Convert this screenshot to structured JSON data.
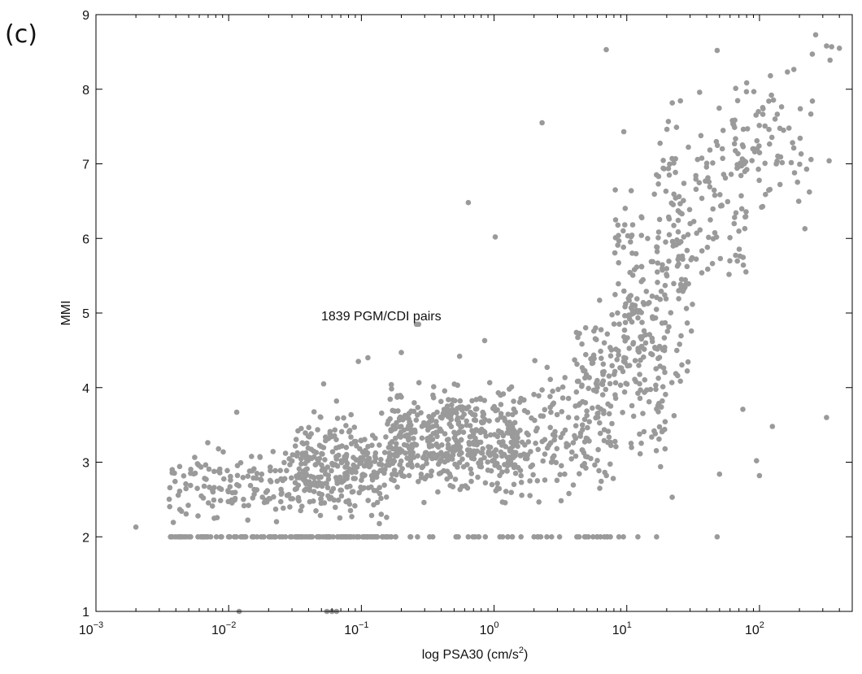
{
  "panel_label": "(c)",
  "chart_data": {
    "type": "scatter",
    "xlabel": "log PSA30 (cm/s",
    "xlabel_sup": "2",
    "xlabel_end": ")",
    "ylabel": "MMI",
    "x_scale": "log",
    "xlim": [
      0.001,
      500
    ],
    "ylim": [
      1,
      9
    ],
    "y_ticks": [
      1,
      2,
      3,
      4,
      5,
      6,
      7,
      8,
      9
    ],
    "x_ticks": [
      {
        "base": "10",
        "exp": "−3",
        "value": 0.001
      },
      {
        "base": "10",
        "exp": "−2",
        "value": 0.01
      },
      {
        "base": "10",
        "exp": "−1",
        "value": 0.1
      },
      {
        "base": "10",
        "exp": "0",
        "value": 1
      },
      {
        "base": "10",
        "exp": "1",
        "value": 10
      },
      {
        "base": "10",
        "exp": "2",
        "value": 100
      }
    ],
    "annotation": {
      "text": "1839 PGM/CDI pairs",
      "x": 0.055,
      "y": 4.95
    },
    "grid": false,
    "marker_color": "#9a9a9a",
    "point_count": 1839,
    "outlier_points": [
      {
        "x": 0.002,
        "y": 2.13
      },
      {
        "x": 0.0115,
        "y": 3.67
      },
      {
        "x": 0.052,
        "y": 4.05
      },
      {
        "x": 0.065,
        "y": 3.82
      },
      {
        "x": 0.095,
        "y": 4.35
      },
      {
        "x": 0.112,
        "y": 4.4
      },
      {
        "x": 0.2,
        "y": 4.47
      },
      {
        "x": 0.26,
        "y": 4.85
      },
      {
        "x": 0.27,
        "y": 4.85
      },
      {
        "x": 0.55,
        "y": 4.42
      },
      {
        "x": 0.64,
        "y": 6.48
      },
      {
        "x": 0.85,
        "y": 4.63
      },
      {
        "x": 1.02,
        "y": 6.02
      },
      {
        "x": 2.3,
        "y": 7.55
      },
      {
        "x": 7.0,
        "y": 8.53
      },
      {
        "x": 9.5,
        "y": 7.43
      },
      {
        "x": 48,
        "y": 8.52
      },
      {
        "x": 95,
        "y": 3.02
      },
      {
        "x": 100,
        "y": 2.82
      },
      {
        "x": 125,
        "y": 3.48
      },
      {
        "x": 48,
        "y": 2.0
      },
      {
        "x": 50,
        "y": 2.84
      },
      {
        "x": 320,
        "y": 3.6
      },
      {
        "x": 335,
        "y": 7.04
      },
      {
        "x": 265,
        "y": 8.73
      },
      {
        "x": 320,
        "y": 8.58
      },
      {
        "x": 350,
        "y": 8.57
      },
      {
        "x": 400,
        "y": 8.55
      },
      {
        "x": 340,
        "y": 8.39
      },
      {
        "x": 250,
        "y": 8.47
      },
      {
        "x": 0.012,
        "y": 1.0
      },
      {
        "x": 0.055,
        "y": 1.0
      },
      {
        "x": 0.065,
        "y": 1.0
      },
      {
        "x": 0.06,
        "y": 1.0
      },
      {
        "x": 22,
        "y": 2.53
      },
      {
        "x": 75,
        "y": 3.71
      }
    ],
    "clusters": [
      {
        "x_log_range": [
          -2.45,
          -1.5
        ],
        "y_range": [
          2.0,
          3.4
        ],
        "n": 200,
        "floor_frac": 0.3
      },
      {
        "x_log_range": [
          -1.5,
          -0.8
        ],
        "y_range": [
          2.0,
          3.8
        ],
        "n": 380,
        "floor_frac": 0.22
      },
      {
        "x_log_range": [
          -0.8,
          0.2
        ],
        "y_range": [
          2.3,
          4.3
        ],
        "n": 520,
        "floor_frac": 0.06
      },
      {
        "x_log_range": [
          0.2,
          0.9
        ],
        "y_range": [
          2.1,
          4.6
        ],
        "n": 160,
        "floor_frac": 0.08
      },
      {
        "x_log_range": [
          0.6,
          1.3
        ],
        "y_range": [
          2.5,
          5.8
        ],
        "n": 170,
        "floor_frac": 0.04
      },
      {
        "x_log_range": [
          0.9,
          1.5
        ],
        "y_range": [
          3.2,
          7.4
        ],
        "n": 160,
        "floor_frac": 0.0
      },
      {
        "x_log_range": [
          1.2,
          1.9
        ],
        "y_range": [
          4.5,
          8.3
        ],
        "n": 130,
        "floor_frac": 0.0
      },
      {
        "x_log_range": [
          1.8,
          2.4
        ],
        "y_range": [
          6.0,
          8.5
        ],
        "n": 83,
        "floor_frac": 0.0
      }
    ]
  }
}
